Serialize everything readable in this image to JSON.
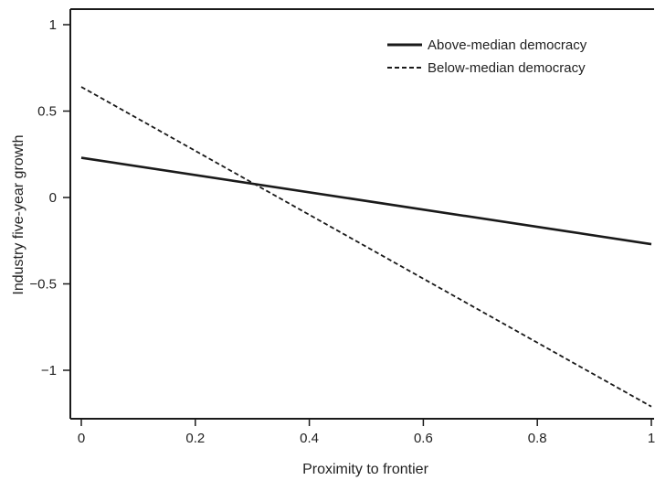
{
  "chart_data": {
    "type": "line",
    "title": "",
    "xlabel": "Proximity to frontier",
    "ylabel": "Industry five-year growth",
    "xlim": [
      -0.02,
      1.0
    ],
    "ylim": [
      -1.28,
      1.05
    ],
    "x_ticks": [
      0,
      0.2,
      0.4,
      0.6,
      0.8,
      1
    ],
    "x_tick_labels": [
      "0",
      "0.2",
      "0.4",
      "0.6",
      "0.8",
      "1"
    ],
    "y_ticks": [
      1,
      0.5,
      0,
      -0.5,
      -1
    ],
    "y_tick_labels": [
      "1",
      "0.5",
      "0",
      "−0.5",
      "−1"
    ],
    "grid": false,
    "legend_position": "top-right",
    "series": [
      {
        "name": "Above-median democracy",
        "style": "solid",
        "color": "#1a1a1a",
        "x": [
          0,
          1
        ],
        "y": [
          0.23,
          -0.27
        ]
      },
      {
        "name": "Below-median democracy",
        "style": "dashed",
        "color": "#1a1a1a",
        "x": [
          0,
          1
        ],
        "y": [
          0.64,
          -1.21
        ]
      }
    ]
  }
}
